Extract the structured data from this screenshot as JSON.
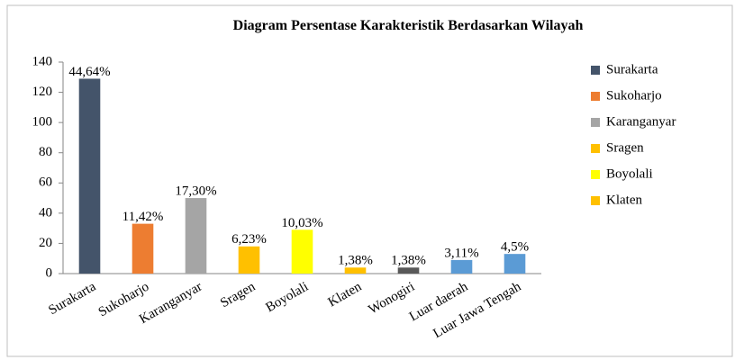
{
  "chart_data": {
    "type": "bar",
    "title": "Diagram Persentase Karakteristik  Berdasarkan Wilayah",
    "categories": [
      "Surakarta",
      "Sukoharjo",
      "Karanganyar",
      "Sragen",
      "Boyolali",
      "Klaten",
      "Wonogiri",
      "Luar daerah",
      "Luar Jawa Tengah"
    ],
    "values": [
      129,
      33,
      50,
      18,
      29,
      4,
      4,
      9,
      13
    ],
    "value_labels": [
      "44,64%",
      "11,42%",
      "17,30%",
      "6,23%",
      "10,03%",
      "1,38%",
      "1,38%",
      "3,11%",
      "4,5%"
    ],
    "colors": [
      "#44546a",
      "#ed7d31",
      "#a5a5a5",
      "#ffc000",
      "#ffff00",
      "#ffc000",
      "#595959",
      "#5b9bd5",
      "#5b9bd5"
    ],
    "ylim": [
      0,
      140
    ],
    "yticks": [
      0,
      20,
      40,
      60,
      80,
      100,
      120,
      140
    ],
    "grid": false
  }
}
